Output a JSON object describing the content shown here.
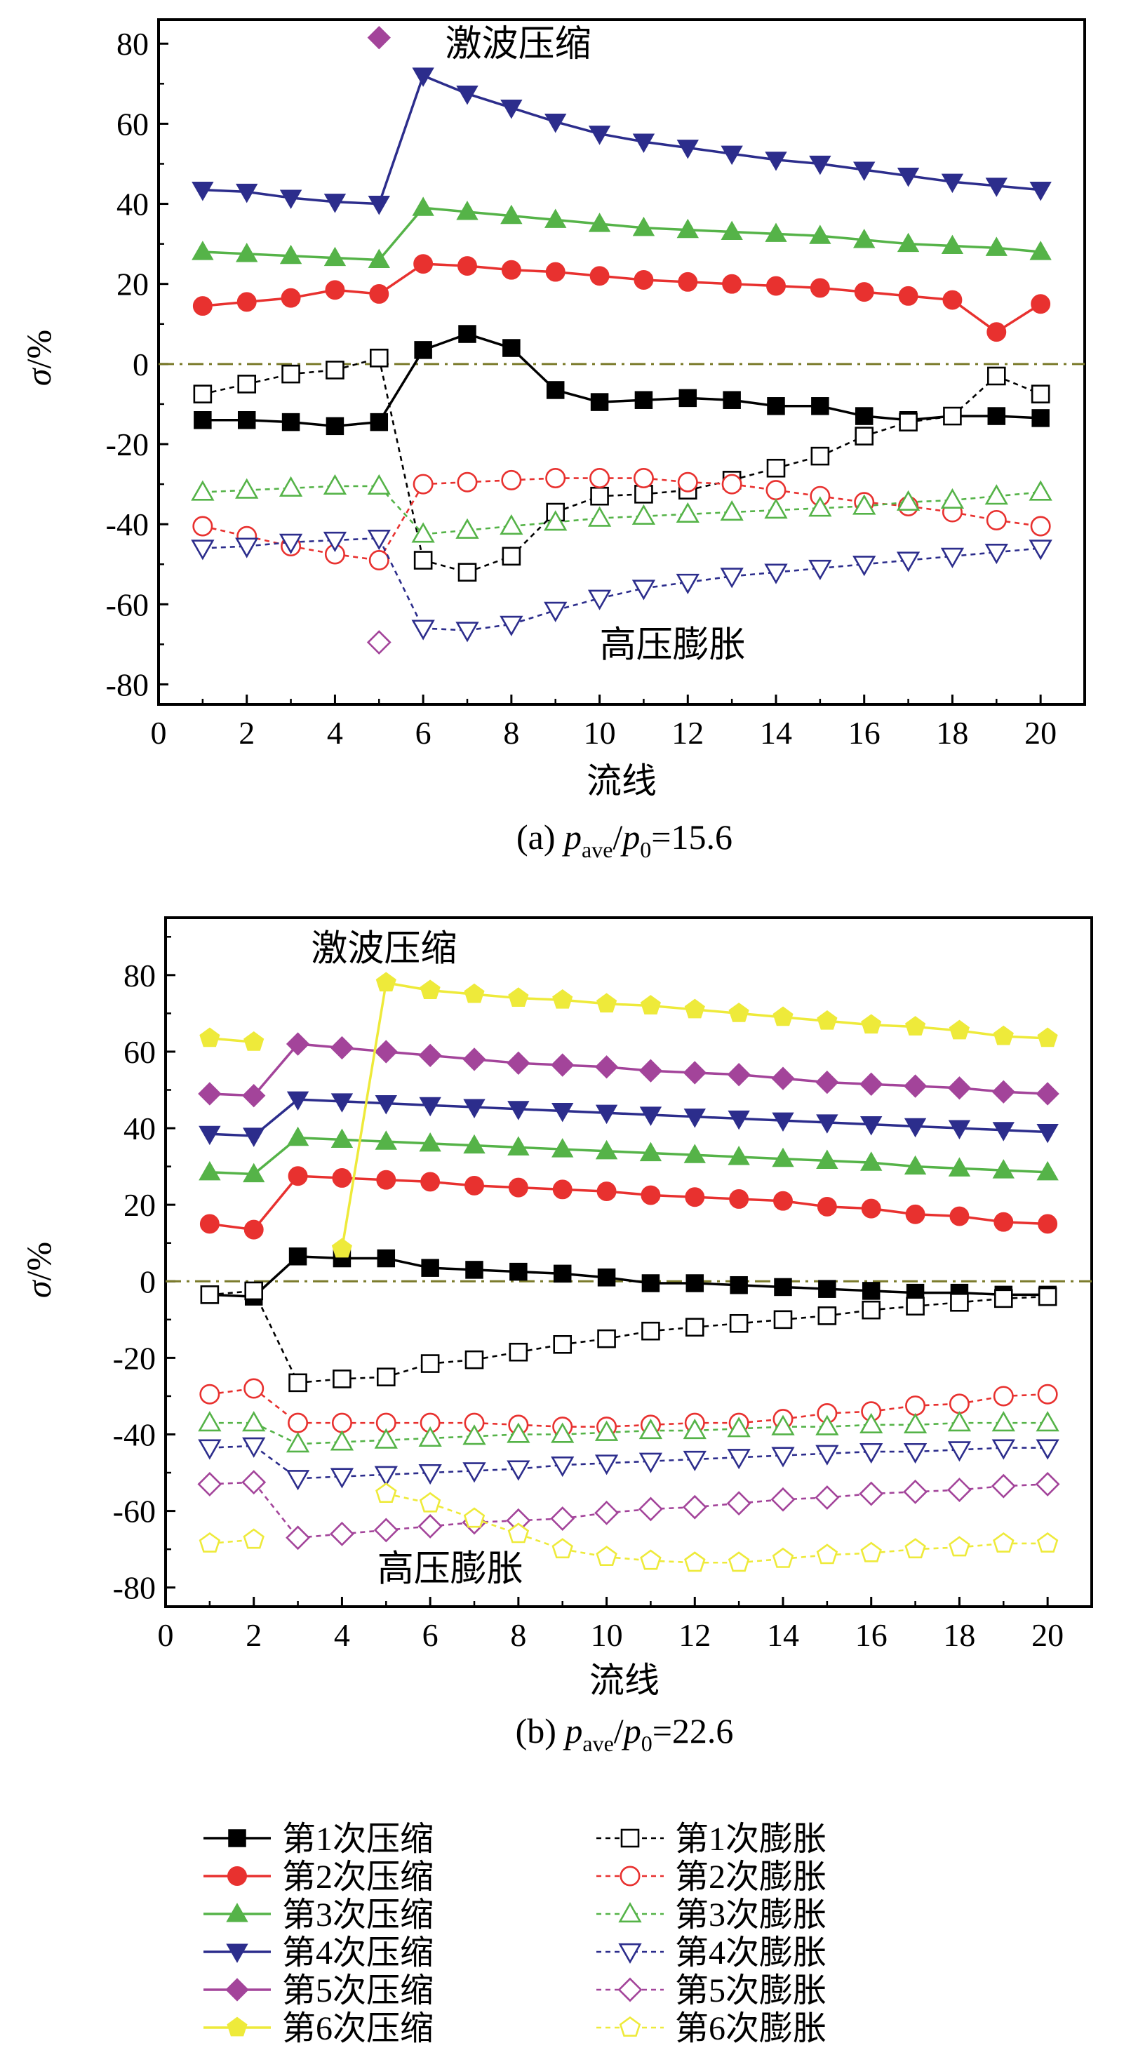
{
  "chart_data": [
    {
      "type": "line",
      "panel": "a",
      "caption": "(a) p_ave/p_0=15.6",
      "caption_prefix": "(a) ",
      "caption_p": "p",
      "caption_ave": "ave",
      "caption_slash": "/",
      "caption_0": "0",
      "caption_value": "=15.6",
      "xlabel": "流线",
      "ylabel_sigma": "σ",
      "ylabel_unit": "/%",
      "xlim": [
        0,
        21
      ],
      "ylim": [
        -85,
        86
      ],
      "xticks": [
        0,
        2,
        4,
        6,
        8,
        10,
        12,
        14,
        16,
        18,
        20
      ],
      "yticks": [
        -80,
        -60,
        -40,
        -20,
        0,
        20,
        40,
        60,
        80
      ],
      "reference_line_y": 0,
      "annotations": [
        {
          "text": "激波压缩",
          "x": 6.5,
          "y": 80
        },
        {
          "text": "高压膨胀",
          "x": 10,
          "y": -70
        }
      ],
      "x": [
        1,
        2,
        3,
        4,
        5,
        6,
        7,
        8,
        9,
        10,
        11,
        12,
        13,
        14,
        15,
        16,
        17,
        18,
        19,
        20
      ],
      "series": [
        {
          "name": "第1次压缩",
          "style": "compression",
          "color": "#000000",
          "marker": "square",
          "values": [
            -14,
            -14,
            -14.5,
            -15.5,
            -14.5,
            3.5,
            7.5,
            4,
            -6.5,
            -9.5,
            -9,
            -8.5,
            -9,
            -10.5,
            -10.5,
            -13,
            -14,
            -13,
            -13,
            -13.5
          ]
        },
        {
          "name": "第2次压缩",
          "style": "compression",
          "color": "#e8312f",
          "marker": "circle",
          "values": [
            14.5,
            15.5,
            16.5,
            18.5,
            17.5,
            25,
            24.5,
            23.5,
            23,
            22,
            21,
            20.5,
            20,
            19.5,
            19,
            18,
            17,
            16,
            8,
            15
          ]
        },
        {
          "name": "第3次压缩",
          "style": "compression",
          "color": "#55b348",
          "marker": "triangle-up",
          "values": [
            28,
            27.5,
            27,
            26.5,
            26,
            39,
            38,
            37,
            36,
            35,
            34,
            33.5,
            33,
            32.5,
            32,
            31,
            30,
            29.5,
            29,
            28
          ]
        },
        {
          "name": "第4次压缩",
          "style": "compression",
          "color": "#2c2d8c",
          "marker": "triangle-down",
          "values": [
            43.5,
            43,
            41.5,
            40.5,
            40,
            72,
            67.5,
            64,
            60.5,
            57.5,
            55.5,
            54,
            52.5,
            51,
            50,
            48.5,
            47,
            45.5,
            44.5,
            43.5
          ]
        },
        {
          "name": "第5次压缩",
          "style": "compression",
          "color": "#a3449a",
          "marker": "diamond",
          "values": [
            null,
            null,
            null,
            null,
            81.5,
            null,
            null,
            null,
            null,
            null,
            null,
            null,
            null,
            null,
            null,
            null,
            null,
            null,
            null,
            null
          ]
        },
        {
          "name": "第1次膨胀",
          "style": "expansion",
          "color": "#000000",
          "marker": "square",
          "values": [
            -7.5,
            -5,
            -2.5,
            -1.5,
            1.5,
            -49,
            -52,
            -48,
            -37,
            -33,
            -32.5,
            -31.5,
            -29,
            -26,
            -23,
            -18,
            -14.5,
            -13,
            -3,
            -7.5
          ]
        },
        {
          "name": "第2次膨胀",
          "style": "expansion",
          "color": "#e8312f",
          "marker": "circle",
          "values": [
            -40.5,
            -43,
            -45.5,
            -47.5,
            -49,
            -30,
            -29.5,
            -29,
            -28.5,
            -28.5,
            -28.5,
            -29.5,
            -30,
            -31.5,
            -33,
            -34.5,
            -35.5,
            -37,
            -39,
            -40.5
          ]
        },
        {
          "name": "第3次膨胀",
          "style": "expansion",
          "color": "#55b348",
          "marker": "triangle-up",
          "values": [
            -32,
            -31.5,
            -31,
            -30.5,
            -30.5,
            -42.5,
            -41.5,
            -40.5,
            -39.5,
            -38.5,
            -38,
            -37.5,
            -37,
            -36.5,
            -36,
            -35.5,
            -34.5,
            -34,
            -33,
            -32
          ]
        },
        {
          "name": "第4次膨胀",
          "style": "expansion",
          "color": "#2c2d8c",
          "marker": "triangle-down",
          "values": [
            -46,
            -45.5,
            -44.5,
            -44,
            -43.5,
            -66,
            -66.5,
            -65,
            -61.5,
            -58.5,
            -56,
            -54.5,
            -53,
            -52,
            -51,
            -50,
            -49,
            -48,
            -47,
            -46
          ]
        },
        {
          "name": "第5次膨胀",
          "style": "expansion",
          "color": "#a3449a",
          "marker": "diamond",
          "values": [
            null,
            null,
            null,
            null,
            -69.5,
            null,
            null,
            null,
            null,
            null,
            null,
            null,
            null,
            null,
            null,
            null,
            null,
            null,
            null,
            null
          ]
        }
      ]
    },
    {
      "type": "line",
      "panel": "b",
      "caption": "(b) p_ave/p_0=22.6",
      "caption_prefix": "(b) ",
      "caption_p": "p",
      "caption_ave": "ave",
      "caption_slash": "/",
      "caption_0": "0",
      "caption_value": "=22.6",
      "xlabel": "流线",
      "ylabel_sigma": "σ",
      "ylabel_unit": "/%",
      "xlim": [
        0,
        21
      ],
      "ylim": [
        -85,
        95
      ],
      "xticks": [
        0,
        2,
        4,
        6,
        8,
        10,
        12,
        14,
        16,
        18,
        20
      ],
      "yticks": [
        -80,
        -60,
        -40,
        -20,
        0,
        20,
        40,
        60,
        80
      ],
      "reference_line_y": 0,
      "annotations": [
        {
          "text": "激波压缩",
          "x": 3.3,
          "y": 87
        },
        {
          "text": "高压膨胀",
          "x": 4.8,
          "y": -75
        }
      ],
      "x": [
        1,
        2,
        3,
        4,
        5,
        6,
        7,
        8,
        9,
        10,
        11,
        12,
        13,
        14,
        15,
        16,
        17,
        18,
        19,
        20
      ],
      "series": [
        {
          "name": "第1次压缩",
          "style": "compression",
          "color": "#000000",
          "marker": "square",
          "values": [
            -3.5,
            -4,
            6.5,
            6,
            6,
            3.5,
            3,
            2.5,
            2,
            1,
            -0.5,
            -0.5,
            -1,
            -1.5,
            -2,
            -2.5,
            -3,
            -3,
            -3.5,
            -3.5
          ]
        },
        {
          "name": "第2次压缩",
          "style": "compression",
          "color": "#e8312f",
          "marker": "circle",
          "values": [
            15,
            13.5,
            27.5,
            27,
            26.5,
            26,
            25,
            24.5,
            24,
            23.5,
            22.5,
            22,
            21.5,
            21,
            19.5,
            19,
            17.5,
            17,
            15.5,
            15
          ]
        },
        {
          "name": "第3次压缩",
          "style": "compression",
          "color": "#55b348",
          "marker": "triangle-up",
          "values": [
            28.5,
            28,
            37.5,
            37,
            36.5,
            36,
            35.5,
            35,
            34.5,
            34,
            33.5,
            33,
            32.5,
            32,
            31.5,
            31,
            30,
            29.5,
            29,
            28.5
          ]
        },
        {
          "name": "第4次压缩",
          "style": "compression",
          "color": "#2c2d8c",
          "marker": "triangle-down",
          "values": [
            38.5,
            38,
            47.5,
            47,
            46.5,
            46,
            45.5,
            45,
            44.5,
            44,
            43.5,
            43,
            42.5,
            42,
            41.5,
            41,
            40.5,
            40,
            39.5,
            39
          ]
        },
        {
          "name": "第5次压缩",
          "style": "compression",
          "color": "#a3449a",
          "marker": "diamond",
          "values": [
            49,
            48.5,
            62,
            61,
            60,
            59,
            58,
            57,
            56.5,
            56,
            55,
            54.5,
            54,
            53,
            52,
            51.5,
            51,
            50.5,
            49.5,
            49
          ]
        },
        {
          "name": "第6次压缩",
          "style": "compression",
          "color": "#eeea3a",
          "marker": "pentagon",
          "values": [
            63.5,
            62.5,
            null,
            8.5,
            78,
            76,
            75,
            74,
            73.5,
            72.5,
            72,
            71,
            70,
            69,
            68,
            67,
            66.5,
            65.5,
            64,
            63.5
          ]
        },
        {
          "name": "第1次膨胀",
          "style": "expansion",
          "color": "#000000",
          "marker": "square",
          "values": [
            -3.5,
            -2.5,
            -26.5,
            -25.5,
            -25,
            -21.5,
            -20.5,
            -18.5,
            -16.5,
            -15,
            -13,
            -12,
            -11,
            -10,
            -9,
            -7.5,
            -6.5,
            -5.5,
            -4.5,
            -4
          ]
        },
        {
          "name": "第2次膨胀",
          "style": "expansion",
          "color": "#e8312f",
          "marker": "circle",
          "values": [
            -29.5,
            -28,
            -37,
            -37,
            -37,
            -37,
            -37,
            -37.5,
            -38,
            -38,
            -37.5,
            -37,
            -37,
            -36,
            -34.5,
            -34,
            -32.5,
            -32,
            -30,
            -29.5
          ]
        },
        {
          "name": "第3次膨胀",
          "style": "expansion",
          "color": "#55b348",
          "marker": "triangle-up",
          "values": [
            -37,
            -37,
            -42.5,
            -42,
            -41.5,
            -41,
            -40.5,
            -40,
            -40,
            -39.5,
            -39,
            -39,
            -38.5,
            -38,
            -38,
            -37.5,
            -37.5,
            -37,
            -37,
            -37
          ]
        },
        {
          "name": "第4次膨胀",
          "style": "expansion",
          "color": "#2c2d8c",
          "marker": "triangle-down",
          "values": [
            -43.5,
            -43,
            -51.5,
            -51,
            -50.5,
            -50,
            -49.5,
            -49,
            -48,
            -47.5,
            -47,
            -46.5,
            -46,
            -45.5,
            -45,
            -44.5,
            -44.5,
            -44,
            -43.5,
            -43.5
          ]
        },
        {
          "name": "第5次膨胀",
          "style": "expansion",
          "color": "#a3449a",
          "marker": "diamond",
          "values": [
            -53,
            -52.5,
            -67,
            -66,
            -65,
            -64,
            -63,
            -62.5,
            -62,
            -60.5,
            -59.5,
            -59,
            -58,
            -57,
            -56.5,
            -55.5,
            -55,
            -54.5,
            -53.5,
            -53
          ]
        },
        {
          "name": "第6次膨胀",
          "style": "expansion",
          "color": "#eeea3a",
          "marker": "pentagon",
          "values": [
            -68.5,
            -67.5,
            null,
            null,
            -55.5,
            -58,
            -62,
            -66,
            -70,
            -72,
            -73,
            -73.5,
            -73.5,
            -72.5,
            -71.5,
            -71,
            -70,
            -69.5,
            -68.5,
            -68.5
          ]
        }
      ]
    }
  ],
  "legend": {
    "placement": "bottom",
    "left_column": [
      {
        "label": "第1次压缩",
        "color": "#000000",
        "marker": "square",
        "style": "compression"
      },
      {
        "label": "第2次压缩",
        "color": "#e8312f",
        "marker": "circle",
        "style": "compression"
      },
      {
        "label": "第3次压缩",
        "color": "#55b348",
        "marker": "triangle-up",
        "style": "compression"
      },
      {
        "label": "第4次压缩",
        "color": "#2c2d8c",
        "marker": "triangle-down",
        "style": "compression"
      },
      {
        "label": "第5次压缩",
        "color": "#a3449a",
        "marker": "diamond",
        "style": "compression"
      },
      {
        "label": "第6次压缩",
        "color": "#eeea3a",
        "marker": "pentagon",
        "style": "compression"
      }
    ],
    "right_column": [
      {
        "label": "第1次膨胀",
        "color": "#000000",
        "marker": "square",
        "style": "expansion"
      },
      {
        "label": "第2次膨胀",
        "color": "#e8312f",
        "marker": "circle",
        "style": "expansion"
      },
      {
        "label": "第3次膨胀",
        "color": "#55b348",
        "marker": "triangle-up",
        "style": "expansion"
      },
      {
        "label": "第4次膨胀",
        "color": "#2c2d8c",
        "marker": "triangle-down",
        "style": "expansion"
      },
      {
        "label": "第5次膨胀",
        "color": "#a3449a",
        "marker": "diamond",
        "style": "expansion"
      },
      {
        "label": "第6次膨胀",
        "color": "#eeea3a",
        "marker": "pentagon",
        "style": "expansion"
      }
    ]
  },
  "colors": {
    "reference_line": "#7a7a2a",
    "axis": "#000000"
  }
}
